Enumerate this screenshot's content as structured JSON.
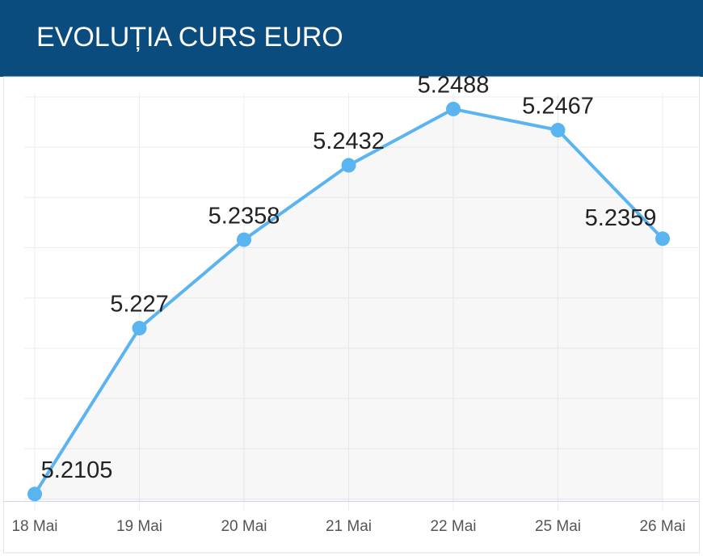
{
  "chart_data": {
    "type": "line",
    "title": "EVOLUȚIA CURS EURO",
    "categories": [
      "18 Mai",
      "19 Mai",
      "20 Mai",
      "21 Mai",
      "22 Mai",
      "25 Mai",
      "26 Mai"
    ],
    "values": [
      5.2105,
      5.227,
      5.2358,
      5.2432,
      5.2488,
      5.2467,
      5.2359
    ],
    "color": "#5ab4f0",
    "ylim": [
      5.2098,
      5.2504
    ],
    "yticks": [
      5.21,
      5.215,
      5.22,
      5.225,
      5.23,
      5.235,
      5.24,
      5.245,
      5.25
    ],
    "grid": true
  }
}
